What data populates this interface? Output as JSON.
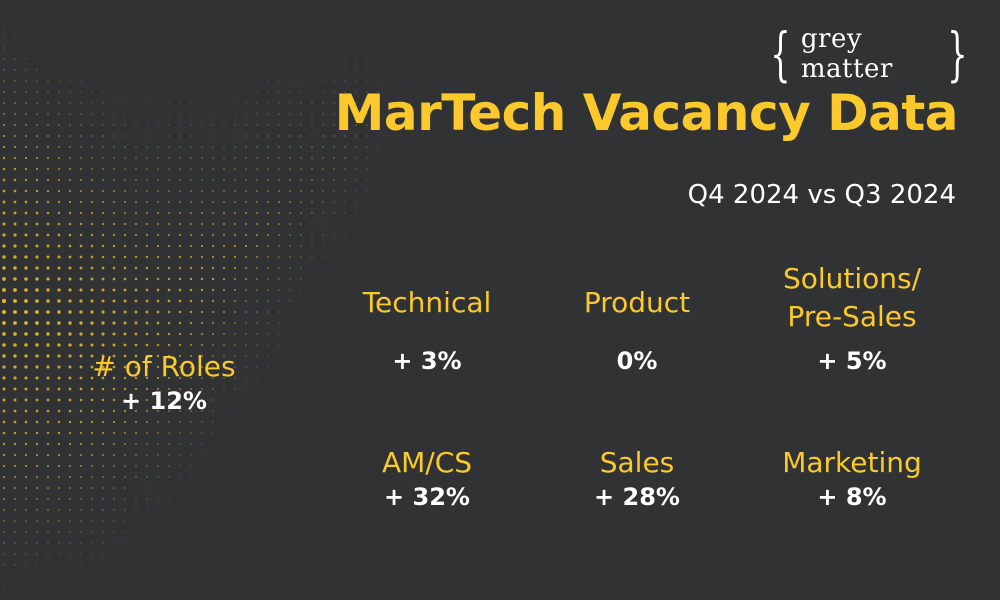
{
  "logo": {
    "open_brace": "{",
    "text": "grey matter",
    "close_brace": "}"
  },
  "title": "MarTech Vacancy Data",
  "subtitle": "Q4 2024 vs Q3 2024",
  "overall": {
    "label": "# of Roles",
    "value": "+ 12%"
  },
  "categories": [
    {
      "label": "Technical",
      "value": "+ 3%"
    },
    {
      "label": "Product",
      "value": "0%"
    },
    {
      "label_line1": "Solutions/",
      "label_line2": "Pre-Sales",
      "value": "+ 5%"
    },
    {
      "label": "AM/CS",
      "value": "+ 32%"
    },
    {
      "label": "Sales",
      "value": "+ 28%"
    },
    {
      "label": "Marketing",
      "value": "+ 8%"
    }
  ],
  "colors": {
    "background": "#303233",
    "accent": "#fbc92b",
    "text": "#ffffff"
  }
}
